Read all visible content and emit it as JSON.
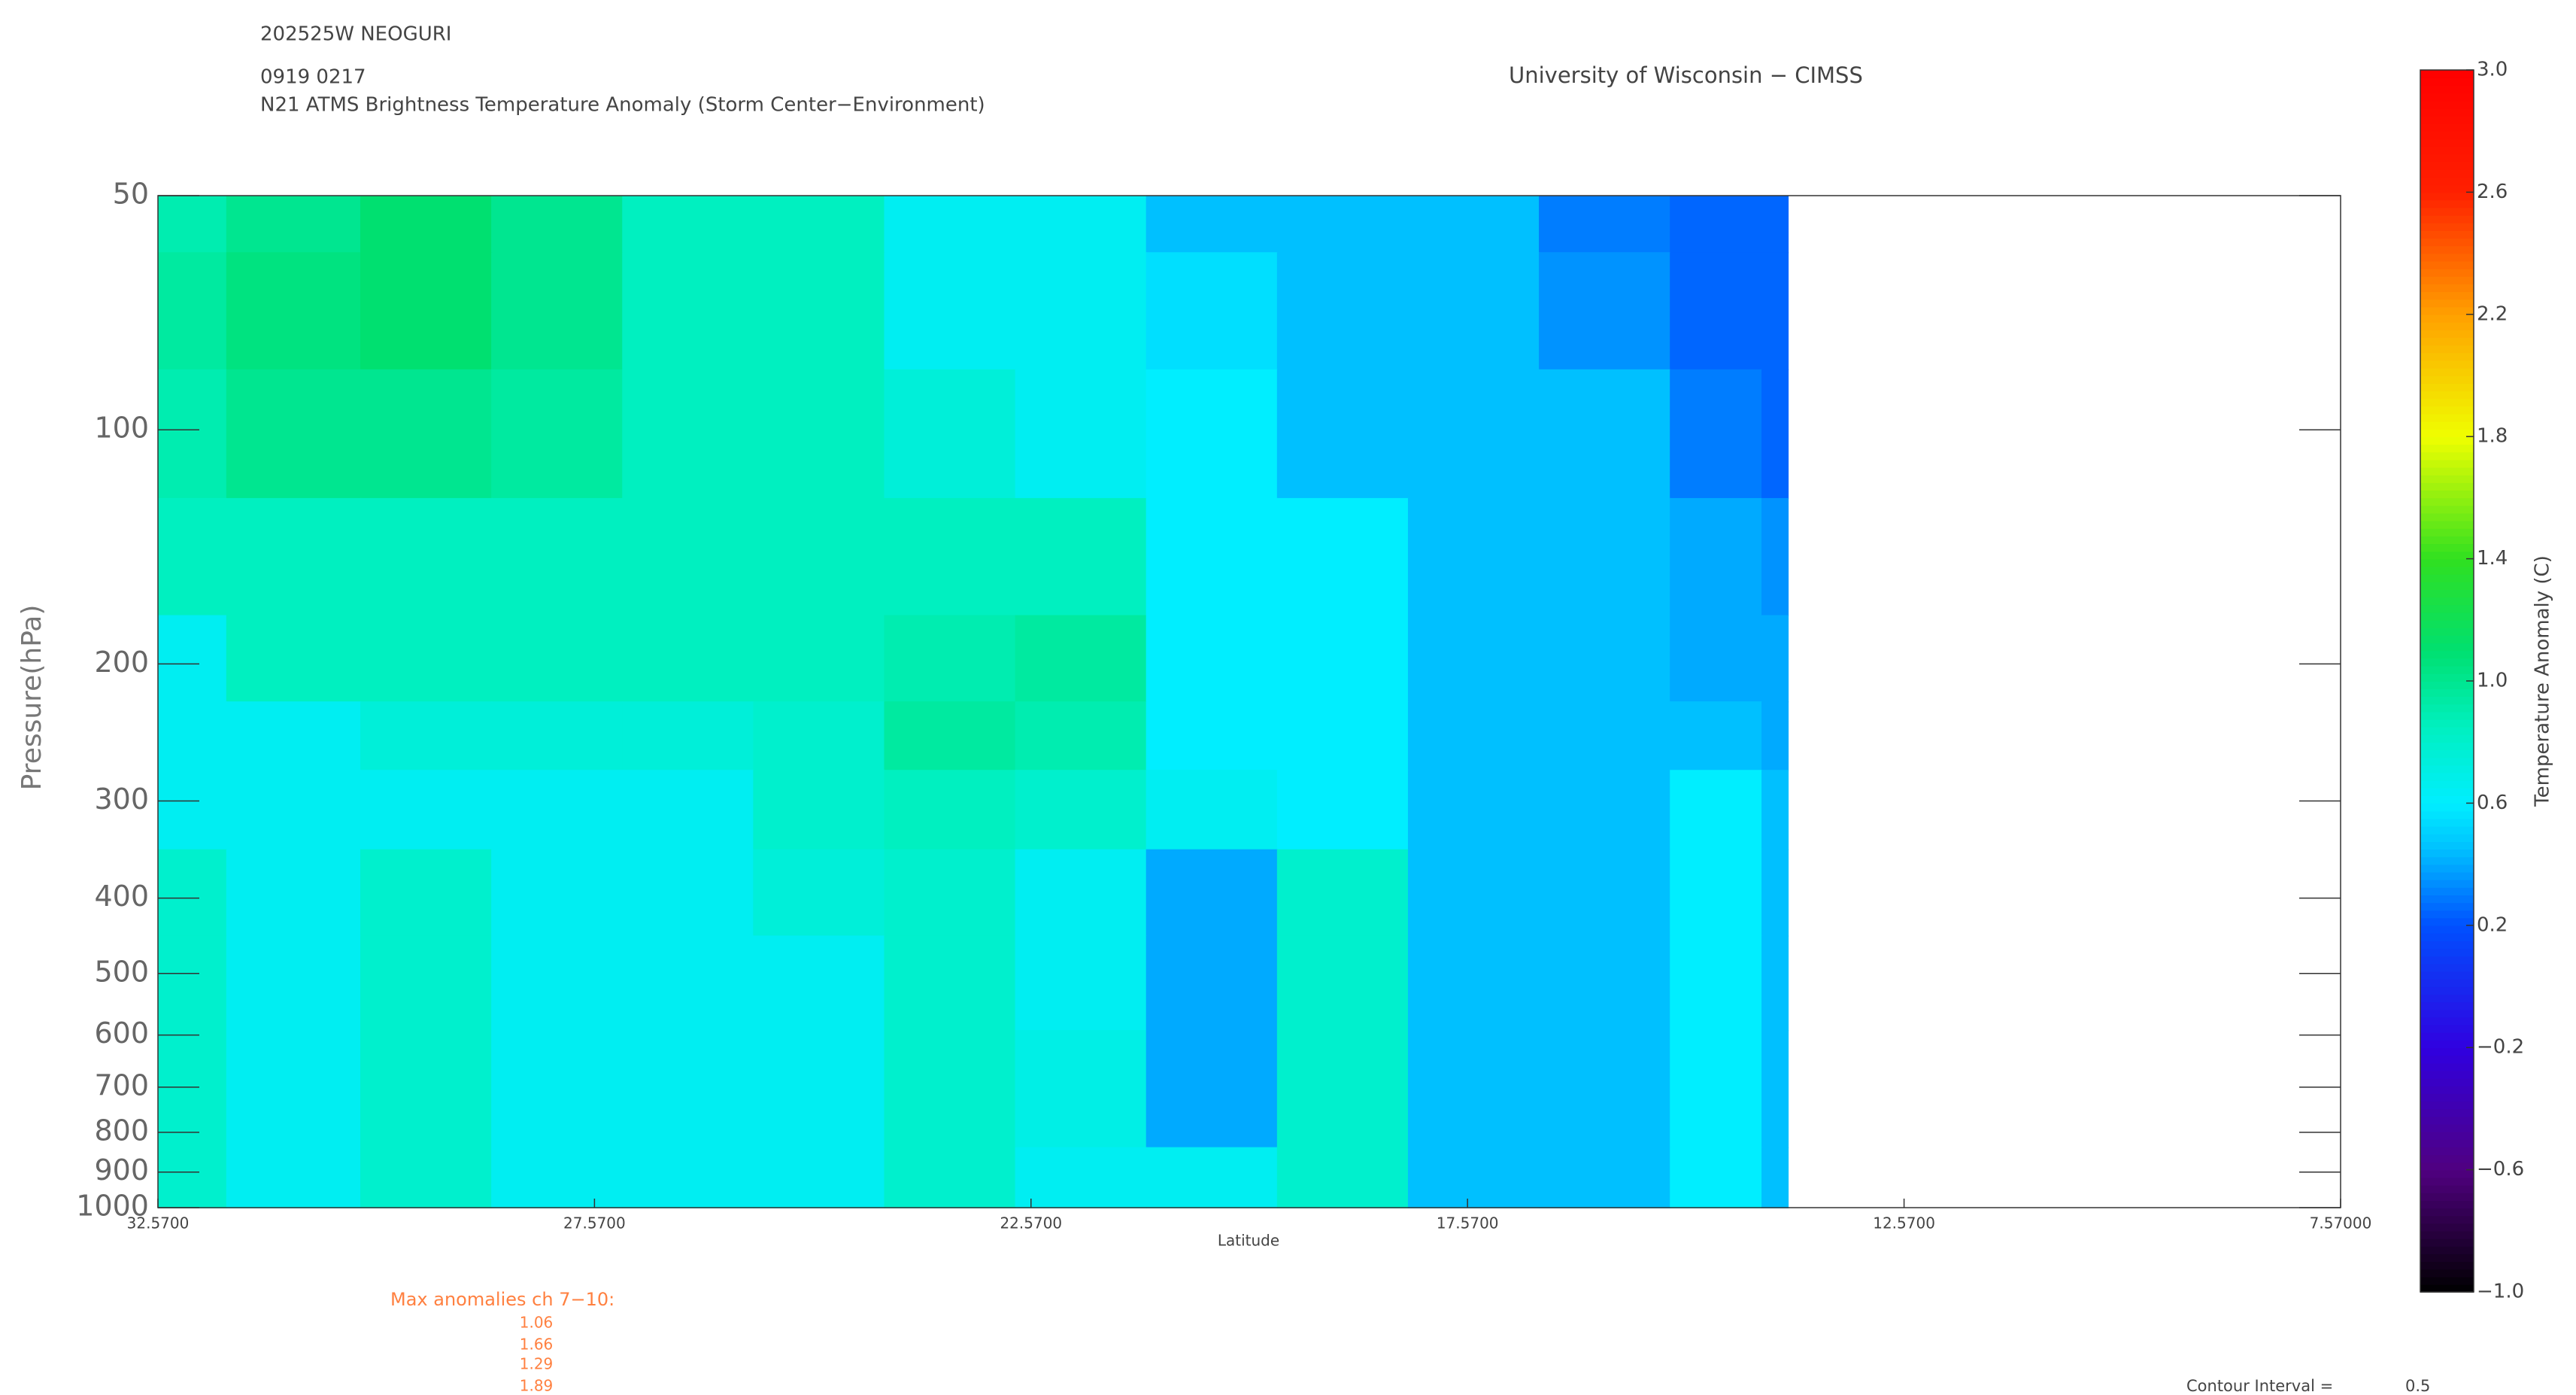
{
  "chart_data": {
    "type": "contour",
    "header": [
      "202525W NEOGURI",
      "0919 0217",
      "N21 ATMS Brightness Temperature Anomaly (Storm Center−Environment)"
    ],
    "credit": "University of Wisconsin − CIMSS",
    "x_label": "Latitude",
    "y_label": "Pressure(hPa)",
    "colorbar_label": "Temperature Anomaly (C)",
    "x": [
      32.57,
      31,
      29.5,
      28,
      26.5,
      25,
      23.5,
      22,
      20.5,
      19,
      17.5,
      16,
      14.5,
      13.9
    ],
    "y": [
      50,
      70,
      100,
      150,
      200,
      250,
      300,
      400,
      500,
      700,
      1000
    ],
    "z": [
      [
        0.9,
        1.0,
        1.1,
        1.0,
        0.85,
        0.85,
        0.65,
        0.65,
        0.45,
        0.45,
        0.45,
        0.3,
        0.25,
        0.25
      ],
      [
        0.95,
        1.05,
        1.1,
        1.0,
        0.85,
        0.85,
        0.65,
        0.65,
        0.55,
        0.45,
        0.45,
        0.35,
        0.25,
        0.25
      ],
      [
        0.9,
        1.0,
        1.0,
        0.95,
        0.85,
        0.85,
        0.75,
        0.65,
        0.6,
        0.45,
        0.45,
        0.45,
        0.3,
        0.25
      ],
      [
        0.85,
        0.85,
        0.85,
        0.85,
        0.85,
        0.85,
        0.85,
        0.85,
        0.6,
        0.6,
        0.45,
        0.45,
        0.4,
        0.35
      ],
      [
        0.65,
        0.85,
        0.85,
        0.85,
        0.85,
        0.85,
        0.9,
        0.95,
        0.6,
        0.6,
        0.45,
        0.45,
        0.4,
        0.4
      ],
      [
        0.65,
        0.65,
        0.75,
        0.75,
        0.75,
        0.8,
        0.95,
        0.9,
        0.6,
        0.6,
        0.45,
        0.45,
        0.45,
        0.4
      ],
      [
        0.65,
        0.65,
        0.65,
        0.65,
        0.65,
        0.8,
        0.85,
        0.8,
        0.65,
        0.6,
        0.45,
        0.45,
        0.6,
        0.45
      ],
      [
        0.8,
        0.65,
        0.8,
        0.65,
        0.65,
        0.75,
        0.8,
        0.65,
        0.4,
        0.8,
        0.45,
        0.45,
        0.6,
        0.45
      ],
      [
        0.8,
        0.65,
        0.8,
        0.65,
        0.65,
        0.65,
        0.8,
        0.65,
        0.4,
        0.8,
        0.45,
        0.45,
        0.6,
        0.45
      ],
      [
        0.8,
        0.65,
        0.8,
        0.65,
        0.65,
        0.65,
        0.8,
        0.7,
        0.4,
        0.8,
        0.45,
        0.45,
        0.6,
        0.45
      ],
      [
        0.8,
        0.65,
        0.8,
        0.65,
        0.65,
        0.65,
        0.8,
        0.65,
        0.65,
        0.8,
        0.45,
        0.45,
        0.6,
        0.45
      ]
    ],
    "xlim": [
      32.57,
      7.57
    ],
    "xticks": [
      {
        "value": 32.57,
        "label": "32.5700"
      },
      {
        "value": 27.57,
        "label": "27.5700"
      },
      {
        "value": 22.57,
        "label": "22.5700"
      },
      {
        "value": 17.57,
        "label": "17.5700"
      },
      {
        "value": 12.57,
        "label": "12.5700"
      },
      {
        "value": 7.57,
        "label": "7.57000"
      }
    ],
    "ylim": [
      1000,
      50
    ],
    "y_log": true,
    "yticks": [
      50,
      100,
      200,
      300,
      400,
      500,
      600,
      700,
      800,
      900,
      1000
    ],
    "clim": [
      -1,
      3
    ],
    "cticks": [
      {
        "value": -1,
        "label": "−1.0"
      },
      {
        "value": -0.6,
        "label": "−0.6"
      },
      {
        "value": -0.2,
        "label": "−0.2"
      },
      0.2,
      0.6,
      {
        "value": 1,
        "label": "1.0"
      },
      1.4,
      1.8,
      2.2,
      2.6,
      {
        "value": 3,
        "label": "3.0"
      }
    ],
    "colormap": [
      {
        "value": -1,
        "color": "#000000"
      },
      {
        "value": -0.6,
        "color": "#500080"
      },
      {
        "value": -0.2,
        "color": "#3000e0"
      },
      {
        "value": 0.2,
        "color": "#0050ff"
      },
      {
        "value": 0.45,
        "color": "#00c0ff"
      },
      {
        "value": 0.6,
        "color": "#00eeff"
      },
      {
        "value": 0.85,
        "color": "#00f0c0"
      },
      {
        "value": 1.1,
        "color": "#00e070"
      },
      {
        "value": 1.4,
        "color": "#30e020"
      },
      {
        "value": 1.8,
        "color": "#f0ff00"
      },
      {
        "value": 2.2,
        "color": "#ffa000"
      },
      {
        "value": 2.6,
        "color": "#ff2000"
      },
      {
        "value": 3,
        "color": "#ff0000"
      }
    ],
    "max_anomalies_title": "Max anomalies ch 7−10:",
    "max_anomalies": [
      1.06,
      1.66,
      1.29,
      1.89
    ],
    "contour_interval_label": "Contour Interval =",
    "contour_interval": 0.5
  }
}
